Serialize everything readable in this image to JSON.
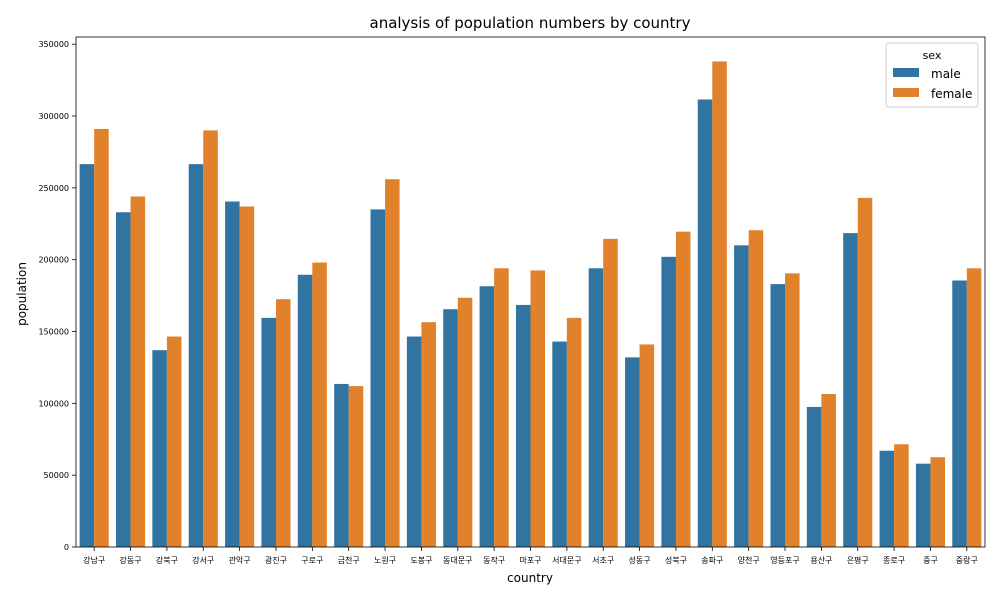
{
  "chart_data": {
    "type": "bar",
    "title": "analysis of population numbers by country",
    "xlabel": "country",
    "ylabel": "population",
    "ylim": [
      0,
      355000
    ],
    "yticks": [
      0,
      50000,
      100000,
      150000,
      200000,
      250000,
      300000,
      350000
    ],
    "grid": false,
    "legend": {
      "title": "sex",
      "placement": "top-right"
    },
    "categories": [
      "강남구",
      "강동구",
      "강북구",
      "강서구",
      "관악구",
      "광진구",
      "구로구",
      "금천구",
      "노원구",
      "도봉구",
      "동대문구",
      "동작구",
      "마포구",
      "서대문구",
      "서초구",
      "성동구",
      "성북구",
      "송파구",
      "양천구",
      "영등포구",
      "용산구",
      "은평구",
      "종로구",
      "중구",
      "중랑구"
    ],
    "series": [
      {
        "name": "male",
        "color": "#3274a1",
        "values": [
          266500,
          233000,
          137000,
          266500,
          240500,
          159500,
          189500,
          113500,
          235000,
          146500,
          165500,
          181500,
          168500,
          143000,
          194000,
          132000,
          202000,
          311500,
          210000,
          183000,
          97500,
          218500,
          67000,
          58000,
          185500
        ]
      },
      {
        "name": "female",
        "color": "#e1812c",
        "values": [
          291000,
          244000,
          146500,
          290000,
          237000,
          172500,
          198000,
          112000,
          256000,
          156500,
          173500,
          194000,
          192500,
          159500,
          214500,
          141000,
          219500,
          338000,
          220500,
          190500,
          106500,
          243000,
          71500,
          62500,
          194000
        ]
      }
    ]
  }
}
